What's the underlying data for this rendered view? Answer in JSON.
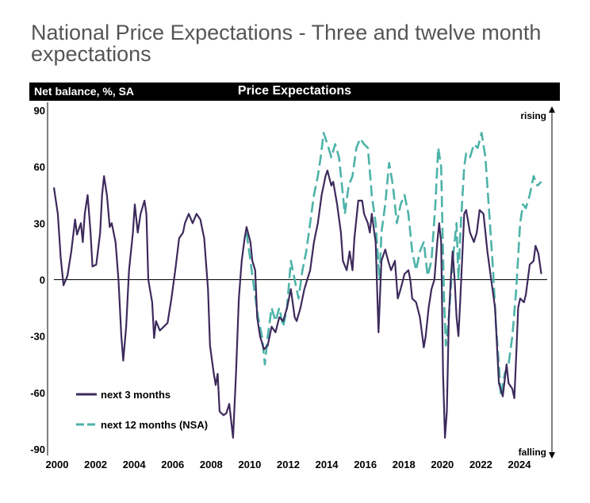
{
  "page_title": "National Price Expectations - Three and twelve month expectations",
  "chart_data": {
    "type": "line",
    "title": "Price Expectations",
    "ylabel": "Net balance, %, SA",
    "xlim": [
      2000,
      2025.4
    ],
    "ylim": [
      -90,
      90
    ],
    "yticks": [
      90,
      60,
      30,
      0,
      -30,
      -60,
      -90
    ],
    "xticks": [
      2000,
      2002,
      2004,
      2006,
      2008,
      2010,
      2012,
      2014,
      2016,
      2018,
      2020,
      2022,
      2024
    ],
    "annotations": {
      "top": "rising",
      "bottom": "falling"
    },
    "legend_position": "bottom-left",
    "grid": false,
    "series": [
      {
        "name": "next 3 months",
        "color": "#3d2a5c",
        "style": "solid",
        "points": [
          [
            2000.0,
            49
          ],
          [
            2000.2,
            35
          ],
          [
            2000.35,
            12
          ],
          [
            2000.5,
            -3
          ],
          [
            2000.7,
            2
          ],
          [
            2000.9,
            15
          ],
          [
            2001.1,
            32
          ],
          [
            2001.2,
            24
          ],
          [
            2001.4,
            30
          ],
          [
            2001.5,
            20
          ],
          [
            2001.6,
            35
          ],
          [
            2001.75,
            45
          ],
          [
            2001.9,
            25
          ],
          [
            2002.0,
            7
          ],
          [
            2002.2,
            8
          ],
          [
            2002.4,
            25
          ],
          [
            2002.5,
            45
          ],
          [
            2002.6,
            55
          ],
          [
            2002.75,
            45
          ],
          [
            2002.9,
            28
          ],
          [
            2003.0,
            30
          ],
          [
            2003.2,
            20
          ],
          [
            2003.35,
            0
          ],
          [
            2003.5,
            -30
          ],
          [
            2003.6,
            -43
          ],
          [
            2003.75,
            -25
          ],
          [
            2003.9,
            5
          ],
          [
            2004.1,
            25
          ],
          [
            2004.2,
            40
          ],
          [
            2004.35,
            25
          ],
          [
            2004.5,
            35
          ],
          [
            2004.7,
            42
          ],
          [
            2004.8,
            35
          ],
          [
            2004.9,
            0
          ],
          [
            2005.1,
            -12
          ],
          [
            2005.2,
            -31
          ],
          [
            2005.3,
            -22
          ],
          [
            2005.5,
            -27
          ],
          [
            2005.7,
            -25
          ],
          [
            2005.9,
            -23
          ],
          [
            2006.1,
            -10
          ],
          [
            2006.3,
            5
          ],
          [
            2006.5,
            22
          ],
          [
            2006.7,
            25
          ],
          [
            2006.8,
            30
          ],
          [
            2007.0,
            35
          ],
          [
            2007.2,
            30
          ],
          [
            2007.4,
            35
          ],
          [
            2007.6,
            32
          ],
          [
            2007.8,
            22
          ],
          [
            2008.0,
            -5
          ],
          [
            2008.1,
            -35
          ],
          [
            2008.3,
            -50
          ],
          [
            2008.4,
            -56
          ],
          [
            2008.5,
            -50
          ],
          [
            2008.6,
            -70
          ],
          [
            2008.8,
            -72
          ],
          [
            2008.95,
            -71
          ],
          [
            2009.1,
            -66
          ],
          [
            2009.2,
            -75
          ],
          [
            2009.3,
            -84
          ],
          [
            2009.45,
            -50
          ],
          [
            2009.6,
            -10
          ],
          [
            2009.75,
            10
          ],
          [
            2009.9,
            22
          ],
          [
            2010.0,
            28
          ],
          [
            2010.2,
            20
          ],
          [
            2010.3,
            10
          ],
          [
            2010.45,
            5
          ],
          [
            2010.55,
            -20
          ],
          [
            2010.7,
            -30
          ],
          [
            2010.9,
            -37
          ],
          [
            2011.1,
            -35
          ],
          [
            2011.3,
            -25
          ],
          [
            2011.5,
            -28
          ],
          [
            2011.7,
            -20
          ],
          [
            2011.9,
            -22
          ],
          [
            2012.1,
            -15
          ],
          [
            2012.3,
            -5
          ],
          [
            2012.5,
            -20
          ],
          [
            2012.6,
            -22
          ],
          [
            2012.8,
            -15
          ],
          [
            2013.0,
            -5
          ],
          [
            2013.3,
            5
          ],
          [
            2013.5,
            20
          ],
          [
            2013.7,
            30
          ],
          [
            2013.9,
            45
          ],
          [
            2014.1,
            55
          ],
          [
            2014.2,
            58
          ],
          [
            2014.4,
            50
          ],
          [
            2014.5,
            52
          ],
          [
            2014.7,
            40
          ],
          [
            2014.9,
            25
          ],
          [
            2015.0,
            10
          ],
          [
            2015.2,
            5
          ],
          [
            2015.35,
            15
          ],
          [
            2015.5,
            5
          ],
          [
            2015.6,
            22
          ],
          [
            2015.8,
            42
          ],
          [
            2016.0,
            42
          ],
          [
            2016.1,
            35
          ],
          [
            2016.3,
            30
          ],
          [
            2016.4,
            25
          ],
          [
            2016.5,
            35
          ],
          [
            2016.7,
            20
          ],
          [
            2016.85,
            -28
          ],
          [
            2017.0,
            10
          ],
          [
            2017.2,
            16
          ],
          [
            2017.35,
            10
          ],
          [
            2017.5,
            5
          ],
          [
            2017.7,
            10
          ],
          [
            2017.85,
            -10
          ],
          [
            2018.0,
            -5
          ],
          [
            2018.2,
            3
          ],
          [
            2018.4,
            5
          ],
          [
            2018.5,
            0
          ],
          [
            2018.6,
            -10
          ],
          [
            2018.8,
            -12
          ],
          [
            2019.0,
            -20
          ],
          [
            2019.2,
            -36
          ],
          [
            2019.3,
            -30
          ],
          [
            2019.45,
            -15
          ],
          [
            2019.6,
            -5
          ],
          [
            2019.75,
            0
          ],
          [
            2019.9,
            20
          ],
          [
            2020.0,
            30
          ],
          [
            2020.1,
            20
          ],
          [
            2020.2,
            -50
          ],
          [
            2020.3,
            -84
          ],
          [
            2020.4,
            -70
          ],
          [
            2020.5,
            -20
          ],
          [
            2020.6,
            0
          ],
          [
            2020.7,
            15
          ],
          [
            2020.8,
            0
          ],
          [
            2020.9,
            -20
          ],
          [
            2021.0,
            -30
          ],
          [
            2021.1,
            -10
          ],
          [
            2021.3,
            35
          ],
          [
            2021.4,
            37
          ],
          [
            2021.6,
            25
          ],
          [
            2021.8,
            20
          ],
          [
            2021.95,
            25
          ],
          [
            2022.1,
            37
          ],
          [
            2022.3,
            35
          ],
          [
            2022.5,
            15
          ],
          [
            2022.7,
            0
          ],
          [
            2022.9,
            -15
          ],
          [
            2023.0,
            -35
          ],
          [
            2023.1,
            -55
          ],
          [
            2023.3,
            -62
          ],
          [
            2023.5,
            -45
          ],
          [
            2023.6,
            -55
          ],
          [
            2023.8,
            -58
          ],
          [
            2023.9,
            -63
          ],
          [
            2024.0,
            -40
          ],
          [
            2024.1,
            -15
          ],
          [
            2024.2,
            -10
          ],
          [
            2024.4,
            -12
          ],
          [
            2024.5,
            -8
          ],
          [
            2024.7,
            8
          ],
          [
            2024.9,
            10
          ],
          [
            2025.0,
            18
          ],
          [
            2025.15,
            14
          ],
          [
            2025.3,
            3
          ]
        ]
      },
      {
        "name": "next 12 months (NSA)",
        "color": "#4db3a8",
        "style": "dashed",
        "points": [
          [
            2010.0,
            25
          ],
          [
            2010.2,
            10
          ],
          [
            2010.4,
            -5
          ],
          [
            2010.6,
            -20
          ],
          [
            2010.8,
            -30
          ],
          [
            2010.95,
            -45
          ],
          [
            2011.1,
            -30
          ],
          [
            2011.3,
            -15
          ],
          [
            2011.5,
            -22
          ],
          [
            2011.7,
            -15
          ],
          [
            2011.9,
            -25
          ],
          [
            2012.1,
            -15
          ],
          [
            2012.3,
            10
          ],
          [
            2012.5,
            0
          ],
          [
            2012.7,
            -10
          ],
          [
            2012.9,
            5
          ],
          [
            2013.1,
            15
          ],
          [
            2013.3,
            30
          ],
          [
            2013.5,
            45
          ],
          [
            2013.7,
            55
          ],
          [
            2013.85,
            65
          ],
          [
            2014.0,
            78
          ],
          [
            2014.2,
            72
          ],
          [
            2014.4,
            65
          ],
          [
            2014.6,
            72
          ],
          [
            2014.8,
            65
          ],
          [
            2015.0,
            45
          ],
          [
            2015.1,
            35
          ],
          [
            2015.3,
            50
          ],
          [
            2015.5,
            55
          ],
          [
            2015.7,
            70
          ],
          [
            2015.9,
            75
          ],
          [
            2016.1,
            72
          ],
          [
            2016.3,
            70
          ],
          [
            2016.5,
            45
          ],
          [
            2016.7,
            30
          ],
          [
            2016.9,
            0
          ],
          [
            2017.0,
            25
          ],
          [
            2017.2,
            40
          ],
          [
            2017.4,
            62
          ],
          [
            2017.6,
            50
          ],
          [
            2017.8,
            30
          ],
          [
            2018.0,
            40
          ],
          [
            2018.2,
            45
          ],
          [
            2018.4,
            35
          ],
          [
            2018.6,
            15
          ],
          [
            2018.8,
            5
          ],
          [
            2019.0,
            15
          ],
          [
            2019.2,
            20
          ],
          [
            2019.4,
            2
          ],
          [
            2019.6,
            10
          ],
          [
            2019.8,
            40
          ],
          [
            2019.95,
            70
          ],
          [
            2020.1,
            60
          ],
          [
            2020.25,
            -10
          ],
          [
            2020.35,
            -35
          ],
          [
            2020.5,
            -20
          ],
          [
            2020.7,
            10
          ],
          [
            2020.9,
            30
          ],
          [
            2021.0,
            0
          ],
          [
            2021.1,
            25
          ],
          [
            2021.3,
            60
          ],
          [
            2021.4,
            67
          ],
          [
            2021.6,
            65
          ],
          [
            2021.8,
            72
          ],
          [
            2022.0,
            70
          ],
          [
            2022.2,
            78
          ],
          [
            2022.4,
            65
          ],
          [
            2022.6,
            35
          ],
          [
            2022.8,
            5
          ],
          [
            2022.95,
            -25
          ],
          [
            2023.1,
            -45
          ],
          [
            2023.2,
            -62
          ],
          [
            2023.4,
            -50
          ],
          [
            2023.6,
            -45
          ],
          [
            2023.8,
            -30
          ],
          [
            2024.0,
            -5
          ],
          [
            2024.2,
            30
          ],
          [
            2024.35,
            40
          ],
          [
            2024.5,
            38
          ],
          [
            2024.7,
            45
          ],
          [
            2024.9,
            55
          ],
          [
            2025.1,
            50
          ],
          [
            2025.3,
            52
          ]
        ]
      }
    ]
  }
}
